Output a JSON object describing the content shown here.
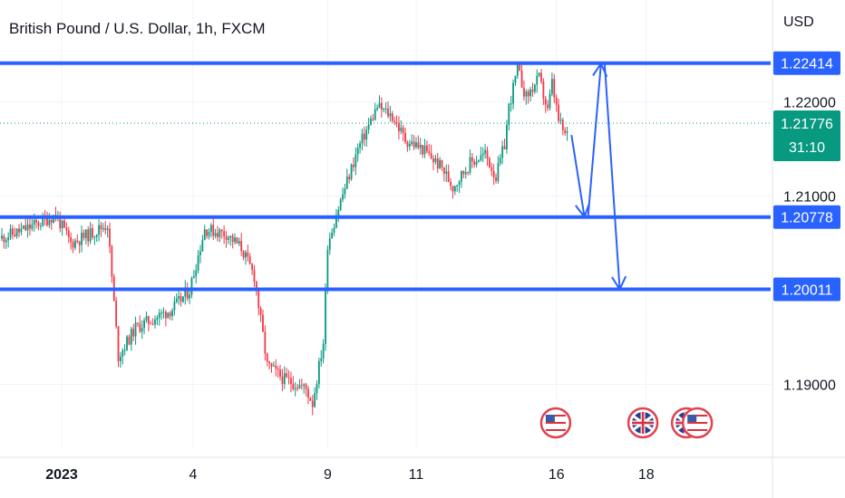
{
  "header": {
    "title": "British Pound / U.S. Dollar, 1h, FXCM",
    "currency": "USD"
  },
  "chart_data": {
    "type": "candlestick",
    "symbol": "GBPUSD",
    "timeframe": "1h",
    "ylim": [
      1.1837,
      1.227
    ],
    "price_ticks": [
      "1.22000",
      "1.21000",
      "1.19000"
    ],
    "price_tick_values": [
      1.22,
      1.21,
      1.19
    ],
    "date_labels": [
      {
        "label": "2023",
        "bold": true,
        "xi": 0.0
      },
      {
        "label": "4",
        "bold": false,
        "xi": 0.205
      },
      {
        "label": "9",
        "bold": false,
        "xi": 0.415
      },
      {
        "label": "11",
        "bold": false,
        "xi": 0.553
      },
      {
        "label": "16",
        "bold": false,
        "xi": 0.772
      },
      {
        "label": "18",
        "bold": false,
        "xi": 0.912
      }
    ],
    "current_price": {
      "value": 1.21776,
      "label": "1.21776",
      "countdown": "31:10",
      "color": "#089981"
    },
    "levels": [
      {
        "name": "resistance",
        "value": 1.22414,
        "label": "1.22414"
      },
      {
        "name": "support-1",
        "value": 1.20778,
        "label": "1.20778"
      },
      {
        "name": "support-2",
        "value": 1.20011,
        "label": "1.20011"
      }
    ],
    "colors": {
      "up": "#089981",
      "down": "#f23645",
      "level": "#2962ff",
      "arrow": "#2962ff",
      "grid": "#f0f3fa"
    },
    "segments": [
      [
        0,
        1.2055
      ],
      [
        12,
        1.2065
      ],
      [
        26,
        1.208
      ],
      [
        33,
        1.205
      ],
      [
        42,
        1.206
      ],
      [
        50,
        1.207
      ],
      [
        55,
        1.193
      ],
      [
        63,
        1.196
      ],
      [
        80,
        1.198
      ],
      [
        88,
        1.2
      ],
      [
        95,
        1.2065
      ],
      [
        105,
        1.206
      ],
      [
        112,
        1.2045
      ],
      [
        118,
        1.2015
      ],
      [
        124,
        1.192
      ],
      [
        132,
        1.1905
      ],
      [
        138,
        1.19
      ],
      [
        142,
        1.1895
      ],
      [
        145,
        1.188
      ],
      [
        150,
        1.1945
      ],
      [
        152,
        1.205
      ],
      [
        158,
        1.2095
      ],
      [
        166,
        1.215
      ],
      [
        175,
        1.2195
      ],
      [
        182,
        1.2185
      ],
      [
        188,
        1.216
      ],
      [
        196,
        1.215
      ],
      [
        205,
        1.213
      ],
      [
        210,
        1.211
      ],
      [
        218,
        1.2135
      ],
      [
        225,
        1.2145
      ],
      [
        230,
        1.212
      ],
      [
        234,
        1.2155
      ],
      [
        236,
        1.2195
      ],
      [
        240,
        1.2235
      ],
      [
        244,
        1.2205
      ],
      [
        250,
        1.2225
      ],
      [
        254,
        1.219
      ],
      [
        256,
        1.222
      ],
      [
        259,
        1.218
      ],
      [
        262,
        1.2165
      ]
    ],
    "candle_count": 263,
    "projection": [
      {
        "from_index": 264,
        "from": 1.2165,
        "to_index": 270,
        "to": 1.2078
      },
      {
        "from_index": 270,
        "from": 1.2078,
        "to_index": 276,
        "to": 1.2241
      },
      {
        "from_index": 276,
        "from": 1.2241,
        "to_index": 283,
        "to": 1.2001
      }
    ],
    "event_flags": [
      {
        "name": "us-event-icon",
        "country": "US",
        "xi": 0.734
      },
      {
        "name": "uk-event-icon",
        "country": "UK",
        "xi": 0.87
      },
      {
        "name": "uk-event-icon-2",
        "country": "UK",
        "xi": 0.938
      },
      {
        "name": "us-event-icon-2",
        "country": "US",
        "xi": 0.955
      }
    ]
  }
}
